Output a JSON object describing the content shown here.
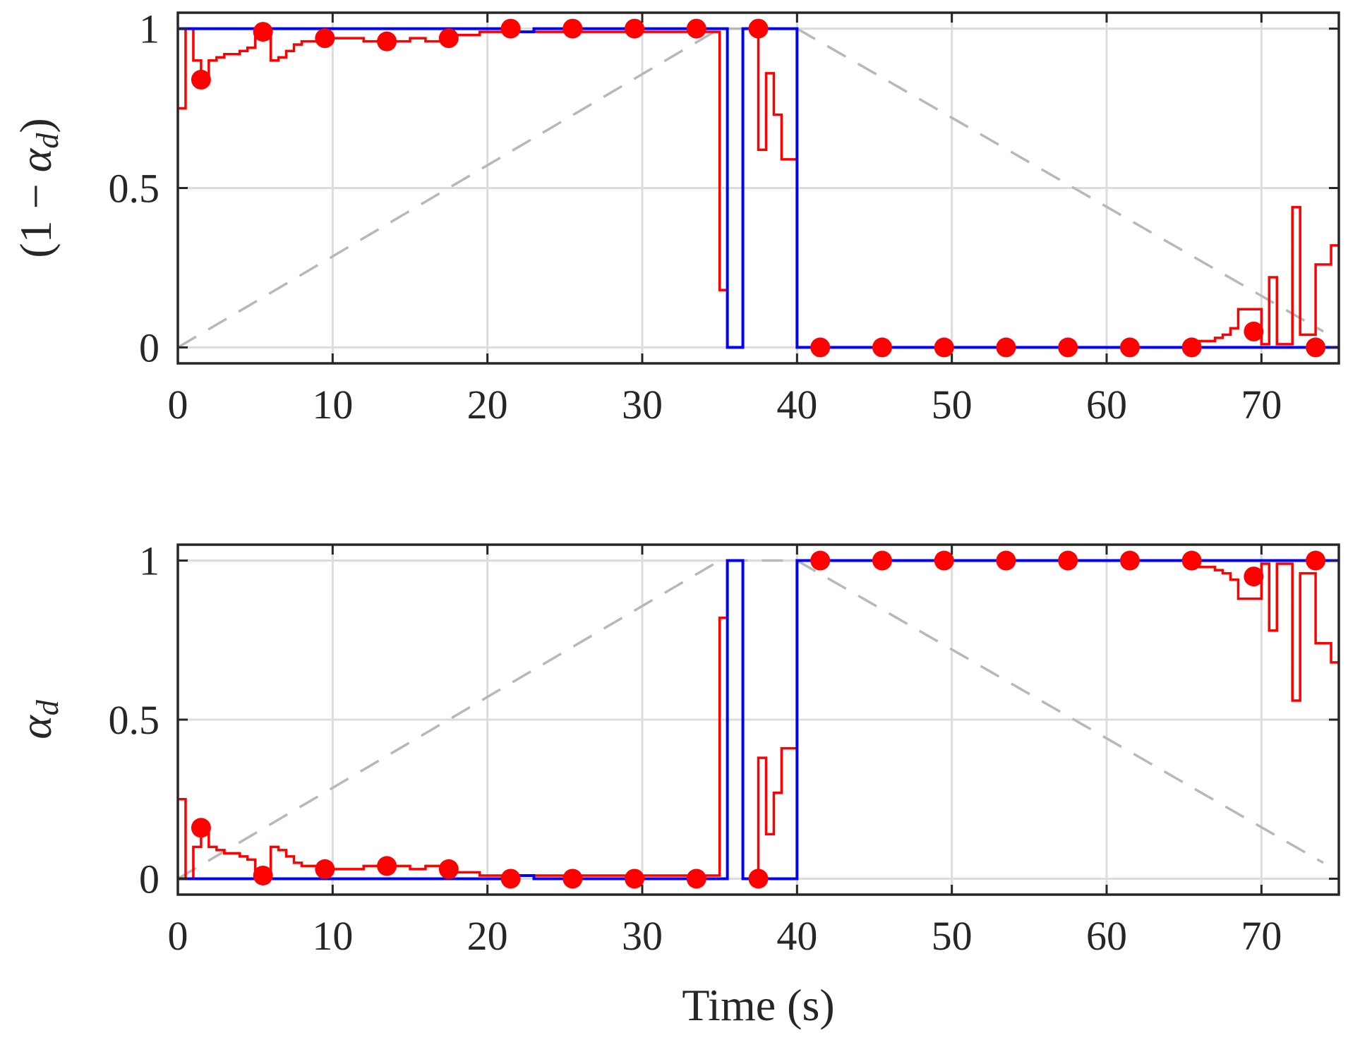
{
  "colors": {
    "step": "#ff0000",
    "binary": "#0000ff",
    "points": "#ff0000",
    "reference": "#b8b8b8",
    "grid": "#dcdcdc",
    "frame": "#262626"
  },
  "chart_data": [
    {
      "type": "line",
      "id": "top",
      "ylabel": "(1 − αd)",
      "xlabel": "",
      "xlim": [
        0,
        75
      ],
      "ylim": [
        -0.05,
        1.05
      ],
      "xticks": [
        "0",
        "10",
        "20",
        "30",
        "40",
        "50",
        "60",
        "70"
      ],
      "xtick_values": [
        0,
        10,
        20,
        30,
        40,
        50,
        60,
        70
      ],
      "yticks": [
        "0",
        "0.5",
        "1"
      ],
      "ytick_values": [
        0,
        0.5,
        1
      ],
      "grid": true,
      "series": [
        {
          "name": "reference",
          "style": "dashed",
          "x": [
            0,
            35,
            40,
            74
          ],
          "y": [
            0,
            1,
            1,
            0.05
          ]
        },
        {
          "name": "estimate",
          "style": "step",
          "x": [
            0,
            0.5,
            1,
            1.5,
            2,
            2.5,
            3,
            3.5,
            4,
            4.5,
            5,
            6,
            6.5,
            7,
            7.5,
            8,
            9,
            10,
            11,
            12,
            13,
            14,
            15,
            16,
            17,
            18,
            19,
            19.5,
            35,
            35.5,
            36.5,
            37,
            37.5,
            38,
            38.5,
            39,
            39.5,
            40
          ],
          "y": [
            0.75,
            1,
            0.9,
            0.85,
            0.9,
            0.91,
            0.92,
            0.92,
            0.93,
            0.94,
            1,
            0.9,
            0.91,
            0.93,
            0.95,
            0.96,
            0.97,
            0.97,
            0.97,
            0.96,
            0.96,
            0.96,
            0.97,
            0.96,
            0.97,
            0.98,
            0.98,
            0.99,
            0.18,
            0,
            1,
            1,
            0.62,
            0.86,
            0.73,
            0.59,
            0.59,
            0
          ]
        },
        {
          "name": "estimate-tail",
          "style": "step",
          "x": [
            60,
            65,
            66,
            67,
            67.5,
            68,
            68.5,
            70,
            70.5,
            71,
            72,
            72.5,
            73,
            73.5,
            74,
            74.5,
            75
          ],
          "y": [
            0,
            0.01,
            0.02,
            0.03,
            0.04,
            0.06,
            0.12,
            0.01,
            0.22,
            0.01,
            0.44,
            0.04,
            0.04,
            0.26,
            0.26,
            0.32,
            0.32
          ]
        },
        {
          "name": "binary",
          "style": "step",
          "x": [
            0,
            20,
            22,
            23,
            25,
            25.5,
            35.5,
            36.5,
            40,
            60,
            61,
            62,
            75
          ],
          "y": [
            1,
            1,
            0.99,
            1,
            0.995,
            1,
            0,
            1,
            0,
            0,
            0.005,
            0,
            0
          ]
        },
        {
          "name": "markers",
          "style": "scatter",
          "x": [
            1.5,
            5.5,
            9.5,
            13.5,
            17.5,
            21.5,
            25.5,
            29.5,
            33.5,
            37.5,
            41.5,
            45.5,
            49.5,
            53.5,
            57.5,
            61.5,
            65.5,
            69.5,
            73.5
          ],
          "y": [
            0.84,
            0.99,
            0.97,
            0.96,
            0.97,
            1,
            1,
            1,
            1,
            1,
            0,
            0,
            0,
            0,
            0,
            0,
            0,
            0.05,
            0
          ]
        }
      ]
    },
    {
      "type": "line",
      "id": "bottom",
      "ylabel": "αd",
      "xlabel": "Time (s)",
      "xlim": [
        0,
        75
      ],
      "ylim": [
        -0.05,
        1.05
      ],
      "xticks": [
        "0",
        "10",
        "20",
        "30",
        "40",
        "50",
        "60",
        "70"
      ],
      "xtick_values": [
        0,
        10,
        20,
        30,
        40,
        50,
        60,
        70
      ],
      "yticks": [
        "0",
        "0.5",
        "1"
      ],
      "ytick_values": [
        0,
        0.5,
        1
      ],
      "grid": true,
      "series": [
        {
          "name": "reference",
          "style": "dashed",
          "x": [
            0,
            35,
            40,
            74
          ],
          "y": [
            0,
            1,
            1,
            0.05
          ]
        },
        {
          "name": "estimate",
          "style": "step",
          "x": [
            0,
            0.5,
            1,
            1.5,
            2,
            2.5,
            3,
            3.5,
            4,
            4.5,
            5,
            6,
            6.5,
            7,
            7.5,
            8,
            9,
            10,
            11,
            12,
            13,
            14,
            15,
            16,
            17,
            18,
            19,
            19.5,
            35,
            35.5,
            36.5,
            37,
            37.5,
            38,
            38.5,
            39,
            39.5,
            40
          ],
          "y": [
            0.25,
            0,
            0.1,
            0.15,
            0.1,
            0.09,
            0.08,
            0.08,
            0.07,
            0.06,
            0,
            0.1,
            0.09,
            0.07,
            0.05,
            0.04,
            0.03,
            0.03,
            0.03,
            0.04,
            0.04,
            0.04,
            0.03,
            0.04,
            0.03,
            0.02,
            0.02,
            0.01,
            0.82,
            1,
            0,
            0,
            0.38,
            0.14,
            0.27,
            0.41,
            0.41,
            1
          ]
        },
        {
          "name": "estimate-tail",
          "style": "step",
          "x": [
            60,
            65,
            66,
            67,
            67.5,
            68,
            68.5,
            70,
            70.5,
            71,
            72,
            72.5,
            73,
            73.5,
            74,
            74.5,
            75
          ],
          "y": [
            1,
            0.99,
            0.98,
            0.97,
            0.96,
            0.94,
            0.88,
            0.99,
            0.78,
            0.99,
            0.56,
            0.96,
            0.96,
            0.74,
            0.74,
            0.68,
            0.68
          ]
        },
        {
          "name": "binary",
          "style": "step",
          "x": [
            0,
            20,
            22,
            23,
            25,
            25.5,
            35.5,
            36.5,
            40,
            60,
            61,
            62,
            75
          ],
          "y": [
            0,
            0,
            0.01,
            0,
            0.005,
            0,
            1,
            0,
            1,
            1,
            0.995,
            1,
            1
          ]
        },
        {
          "name": "markers",
          "style": "scatter",
          "x": [
            1.5,
            5.5,
            9.5,
            13.5,
            17.5,
            21.5,
            25.5,
            29.5,
            33.5,
            37.5,
            41.5,
            45.5,
            49.5,
            53.5,
            57.5,
            61.5,
            65.5,
            69.5,
            73.5
          ],
          "y": [
            0.16,
            0.01,
            0.03,
            0.04,
            0.03,
            0,
            0,
            0,
            0,
            0,
            1,
            1,
            1,
            1,
            1,
            1,
            1,
            0.95,
            1
          ]
        }
      ]
    }
  ]
}
